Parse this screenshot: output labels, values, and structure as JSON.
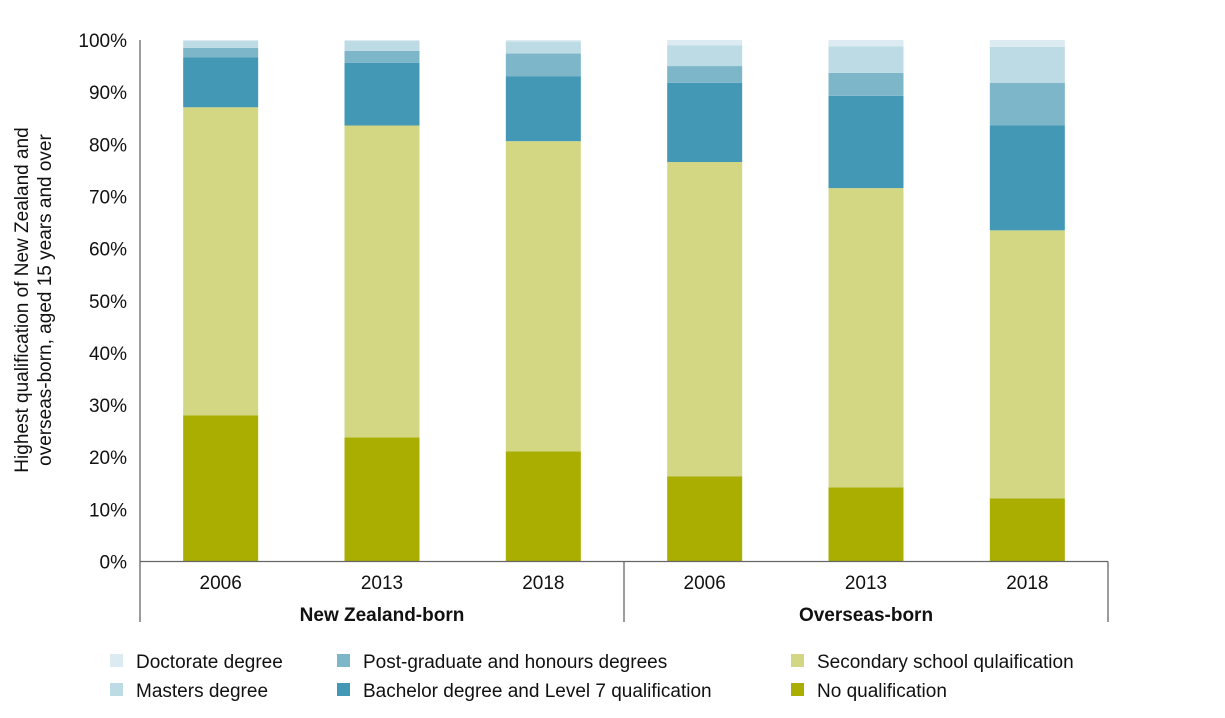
{
  "chart_data": {
    "type": "bar",
    "stacked": true,
    "title": "",
    "ylabel": "Highest qualification of New Zealand and overseas-born, aged 15 years and over",
    "ylabel_lines": [
      "Highest qualification of New Zealand and",
      "overseas-born, aged 15 years and over"
    ],
    "xlabel": "",
    "ylim": [
      0,
      100
    ],
    "yticks": [
      "0%",
      "10%",
      "20%",
      "30%",
      "40%",
      "50%",
      "60%",
      "70%",
      "80%",
      "90%",
      "100%"
    ],
    "groups": [
      {
        "label": "New Zealand-born",
        "categories": [
          "2006",
          "2013",
          "2018"
        ]
      },
      {
        "label": "Overseas-born",
        "categories": [
          "2006",
          "2013",
          "2018"
        ]
      }
    ],
    "categories": [
      "2006",
      "2013",
      "2018",
      "2006",
      "2013",
      "2018"
    ],
    "legend_position": "bottom",
    "series": [
      {
        "name": "No qualification",
        "color": "#a9ae00",
        "values": [
          28.0,
          23.8,
          21.1,
          16.3,
          14.2,
          12.1
        ]
      },
      {
        "name": "Secondary school qulaification",
        "color": "#d3d784",
        "values": [
          59.1,
          59.8,
          59.5,
          60.3,
          57.4,
          51.4
        ]
      },
      {
        "name": "Bachelor degree and Level 7 qualification",
        "color": "#4398b5",
        "values": [
          9.6,
          12.0,
          12.4,
          15.2,
          17.7,
          20.1
        ]
      },
      {
        "name": "Post-graduate and honours degrees",
        "color": "#7db5c9",
        "values": [
          1.8,
          2.3,
          4.4,
          3.2,
          4.4,
          8.2
        ]
      },
      {
        "name": "Masters degree",
        "color": "#bddbe4",
        "values": [
          1.3,
          1.9,
          2.3,
          4.0,
          5.1,
          6.9
        ]
      },
      {
        "name": "Doctorate degree",
        "color": "#dcebf1",
        "values": [
          0.2,
          0.2,
          0.3,
          1.0,
          1.2,
          1.3
        ]
      }
    ],
    "legend_order": [
      "Doctorate degree",
      "Masters degree",
      "Post-graduate and honours degrees",
      "Bachelor degree and Level 7 qualification",
      "Secondary school qulaification",
      "No qualification"
    ]
  }
}
